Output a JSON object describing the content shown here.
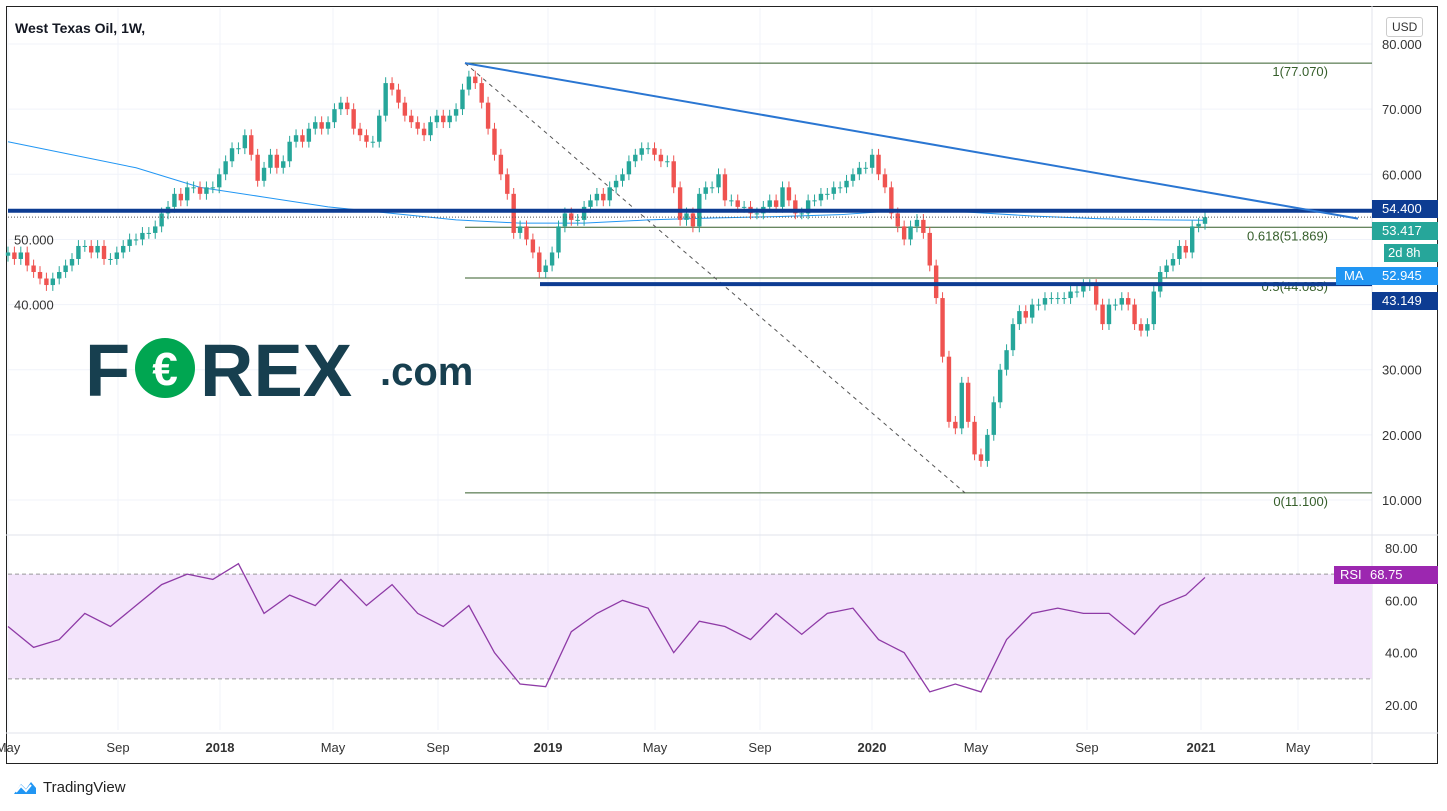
{
  "header": {
    "title": "West Texas Oil, 1W,",
    "currency": "USD"
  },
  "branding": {
    "logo_text": "FOREX.com",
    "footer": "TradingView"
  },
  "colors": {
    "up": "#26a69a",
    "down": "#ef5350",
    "ma": "#2196f3",
    "level": "#0d3c92",
    "trend": "#2a76d2",
    "fib": "#355e2a",
    "rsi": "#8e3aa6",
    "rsi_band": "#f3e4fb"
  },
  "tags": {
    "level_high": "54.400",
    "last_price": "53.417",
    "countdown": "2d 8h",
    "ma_label": "MA",
    "ma_value": "52.945",
    "level_low": "43.149",
    "rsi_label": "RSI",
    "rsi_value": "68.75"
  },
  "chart_data": [
    {
      "type": "candlestick",
      "title": "West Texas Oil, 1W,",
      "interval": "weekly",
      "ylim": [
        10,
        80
      ],
      "y_ticks": [
        "80.000",
        "70.000",
        "60.000",
        "50.000",
        "40.000",
        "30.000",
        "20.000",
        "10.000"
      ],
      "x_ticks": [
        "May",
        "Sep",
        "2018",
        "May",
        "Sep",
        "2019",
        "May",
        "Sep",
        "2020",
        "May",
        "Sep",
        "2021",
        "May"
      ],
      "closes": [
        48,
        47,
        48,
        46,
        45,
        44,
        43,
        44,
        45,
        46,
        47,
        49,
        49,
        48,
        49,
        47,
        47,
        48,
        49,
        50,
        50,
        51,
        51,
        52,
        54,
        55,
        57,
        56,
        58,
        58,
        57,
        58,
        58,
        60,
        62,
        64,
        64,
        66,
        63,
        59,
        61,
        63,
        61,
        62,
        65,
        66,
        65,
        67,
        68,
        67,
        68,
        70,
        71,
        70,
        67,
        66,
        65,
        65,
        69,
        74,
        73,
        71,
        69,
        68,
        67,
        66,
        68,
        69,
        68,
        69,
        70,
        73,
        75,
        74,
        71,
        67,
        63,
        60,
        57,
        51,
        52,
        50,
        48,
        45,
        46,
        48,
        52,
        54,
        53,
        53,
        55,
        56,
        57,
        56,
        58,
        59,
        60,
        62,
        63,
        64,
        64,
        63,
        62,
        62,
        58,
        53,
        54,
        52,
        57,
        58,
        58,
        60,
        56,
        56,
        55,
        55,
        54,
        54,
        55,
        56,
        55,
        58,
        56,
        54,
        54,
        56,
        56,
        57,
        57,
        58,
        58,
        59,
        60,
        61,
        61,
        63,
        60,
        58,
        54,
        52,
        50,
        52,
        53,
        51,
        46,
        41,
        32,
        22,
        21,
        28,
        22,
        17,
        16,
        20,
        25,
        30,
        33,
        37,
        39,
        38,
        40,
        40,
        41,
        41,
        41,
        41,
        42,
        42,
        43,
        43,
        40,
        37,
        40,
        40,
        41,
        40,
        37,
        36,
        37,
        42,
        45,
        46,
        47,
        49,
        48,
        52,
        52.4,
        53.417
      ],
      "moving_average": {
        "label": "MA",
        "every_n_weeks": 10,
        "values": [
          65,
          63,
          61,
          58,
          56.5,
          55,
          54,
          53,
          52.5,
          52.5,
          53,
          53.3,
          53.5,
          53.8,
          54.5,
          54.2,
          53.6,
          53.2,
          53.0,
          52.945
        ]
      },
      "horizontal_levels": [
        54.4,
        43.149
      ],
      "last_price": 53.417,
      "fibonacci": [
        {
          "label": "1(77.070)",
          "value": 77.07
        },
        {
          "label": "0.618(51.869)",
          "value": 51.869
        },
        {
          "label": "0.5(44.085)",
          "value": 44.085
        },
        {
          "label": "0(11.100)",
          "value": 11.1
        }
      ],
      "trendline": {
        "from": 77.07,
        "to": 53.2
      }
    },
    {
      "type": "line",
      "name": "RSI",
      "ylim": [
        10,
        85
      ],
      "y_ticks": [
        "80.00",
        "60.00",
        "40.00",
        "20.00"
      ],
      "band": [
        30,
        70
      ],
      "every_n_weeks": 4,
      "values": [
        50,
        42,
        45,
        55,
        50,
        58,
        66,
        70,
        68,
        74,
        55,
        62,
        58,
        68,
        58,
        66,
        55,
        50,
        58,
        40,
        28,
        27,
        48,
        55,
        60,
        57,
        40,
        52,
        50,
        45,
        55,
        47,
        55,
        57,
        45,
        40,
        25,
        28,
        25,
        45,
        55,
        57,
        55,
        55,
        47,
        58,
        62,
        68.75
      ]
    }
  ]
}
